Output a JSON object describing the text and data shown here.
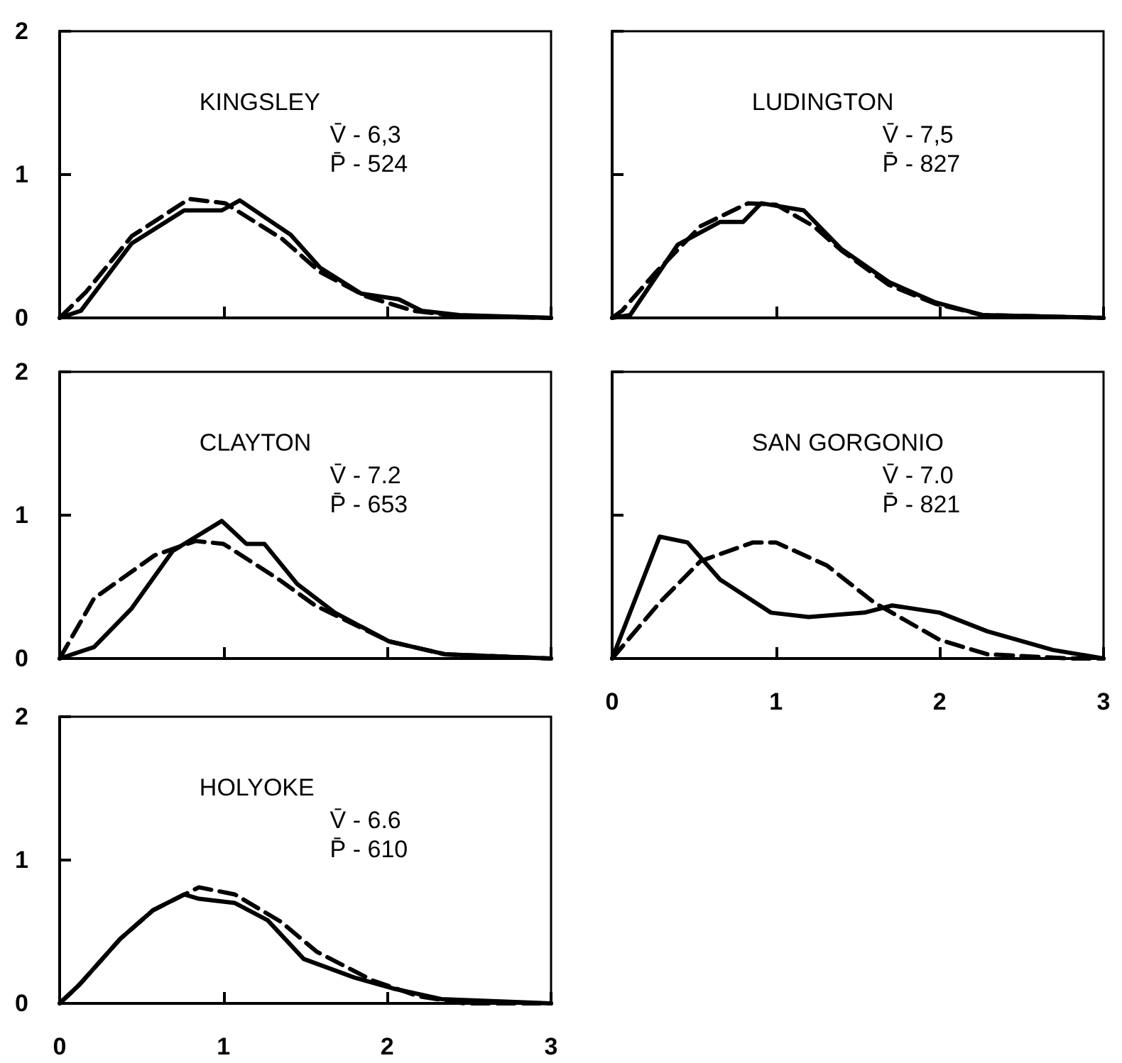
{
  "chart_data": [
    {
      "type": "line",
      "title": "KINGSLEY",
      "annotations": [
        "V̄ - 6,3",
        "P̄ - 524"
      ],
      "xlim": [
        0,
        3
      ],
      "ylim": [
        0,
        2
      ],
      "xticks": [
        0,
        1,
        2,
        3
      ],
      "yticks": [
        0,
        1,
        2
      ],
      "tick_labels": "y",
      "series": [
        {
          "color": "#000000",
          "line_style": "solid",
          "x": [
            0,
            0.13,
            0.44,
            0.76,
            0.99,
            1.1,
            1.41,
            1.59,
            1.84,
            2.07,
            2.21,
            2.44,
            3
          ],
          "values": [
            0,
            0.05,
            0.52,
            0.75,
            0.75,
            0.82,
            0.58,
            0.35,
            0.17,
            0.13,
            0.05,
            0.02,
            0
          ]
        },
        {
          "color": "#000000",
          "line_style": "dashed",
          "x": [
            0,
            0.16,
            0.44,
            0.79,
            1.01,
            1.36,
            1.59,
            1.87,
            2.16,
            2.44,
            3
          ],
          "values": [
            0,
            0.18,
            0.57,
            0.83,
            0.8,
            0.55,
            0.32,
            0.15,
            0.05,
            0.01,
            0
          ]
        }
      ]
    },
    {
      "type": "line",
      "title": "LUDINGTON",
      "annotations": [
        "V̄ - 7,5",
        "P̄ - 827"
      ],
      "xlim": [
        0,
        3
      ],
      "ylim": [
        0,
        2
      ],
      "xticks": [
        0,
        1,
        2,
        3
      ],
      "yticks": [
        0,
        1,
        2
      ],
      "tick_labels": false,
      "series": [
        {
          "color": "#000000",
          "line_style": "solid",
          "x": [
            0,
            0.11,
            0.4,
            0.66,
            0.8,
            0.91,
            1.17,
            1.4,
            1.69,
            1.97,
            2.26,
            3
          ],
          "values": [
            0,
            0.02,
            0.51,
            0.67,
            0.67,
            0.8,
            0.75,
            0.48,
            0.25,
            0.11,
            0.02,
            0
          ]
        },
        {
          "color": "#000000",
          "line_style": "dashed",
          "x": [
            0,
            0.06,
            0.26,
            0.54,
            0.83,
            1.0,
            1.23,
            1.4,
            1.69,
            1.97,
            2.26,
            3
          ],
          "values": [
            0,
            0.05,
            0.31,
            0.64,
            0.8,
            0.79,
            0.64,
            0.47,
            0.23,
            0.1,
            0.02,
            0
          ]
        }
      ]
    },
    {
      "type": "line",
      "title": "CLAYTON",
      "annotations": [
        "V̄ - 7.2",
        "P̄ - 653"
      ],
      "xlim": [
        0,
        3
      ],
      "ylim": [
        0,
        2
      ],
      "xticks": [
        0,
        1,
        2,
        3
      ],
      "yticks": [
        0,
        1,
        2
      ],
      "tick_labels": "y",
      "series": [
        {
          "color": "#000000",
          "line_style": "solid",
          "x": [
            0,
            0.21,
            0.44,
            0.69,
            0.99,
            1.14,
            1.25,
            1.45,
            1.68,
            2.01,
            2.35,
            3
          ],
          "values": [
            0,
            0.08,
            0.35,
            0.75,
            0.96,
            0.8,
            0.8,
            0.52,
            0.32,
            0.12,
            0.03,
            0
          ]
        },
        {
          "color": "#000000",
          "line_style": "dashed",
          "x": [
            0,
            0.21,
            0.58,
            0.83,
            1.0,
            1.34,
            1.56,
            2.01,
            2.35,
            3
          ],
          "values": [
            0,
            0.42,
            0.72,
            0.82,
            0.8,
            0.55,
            0.37,
            0.12,
            0.03,
            0
          ]
        }
      ]
    },
    {
      "type": "line",
      "title": "SAN GORGONIO",
      "annotations": [
        "V̄ - 7.0",
        "P̄ - 821"
      ],
      "xlim": [
        0,
        3
      ],
      "ylim": [
        0,
        2
      ],
      "xticks": [
        0,
        1,
        2,
        3
      ],
      "yticks": [
        0,
        1,
        2
      ],
      "tick_labels": "x",
      "series": [
        {
          "color": "#000000",
          "line_style": "solid",
          "x": [
            0,
            0.29,
            0.46,
            0.66,
            0.97,
            1.2,
            1.54,
            1.71,
            2.0,
            2.29,
            2.69,
            3
          ],
          "values": [
            0,
            0.85,
            0.81,
            0.55,
            0.32,
            0.29,
            0.32,
            0.37,
            0.32,
            0.19,
            0.06,
            0
          ]
        },
        {
          "color": "#000000",
          "line_style": "dashed",
          "x": [
            0,
            0.29,
            0.54,
            0.86,
            1.0,
            1.31,
            1.6,
            2.0,
            2.29,
            2.8,
            3
          ],
          "values": [
            0,
            0.39,
            0.68,
            0.81,
            0.81,
            0.65,
            0.39,
            0.13,
            0.03,
            0,
            0
          ]
        }
      ]
    },
    {
      "type": "line",
      "title": "HOLYOKE",
      "annotations": [
        "V̄ - 6.6",
        "P̄ - 610"
      ],
      "xlim": [
        0,
        3
      ],
      "ylim": [
        0,
        2
      ],
      "xticks": [
        0,
        1,
        2,
        3
      ],
      "yticks": [
        0,
        1,
        2
      ],
      "series": [
        {
          "color": "#000000",
          "line_style": "solid",
          "x": [
            0,
            0.12,
            0.37,
            0.57,
            0.76,
            0.85,
            1.07,
            1.27,
            1.49,
            1.8,
            2.05,
            2.33,
            3
          ],
          "values": [
            0,
            0.13,
            0.45,
            0.65,
            0.76,
            0.73,
            0.7,
            0.58,
            0.31,
            0.18,
            0.1,
            0.03,
            0
          ]
        },
        {
          "color": "#000000",
          "line_style": "dashed",
          "x": [
            0,
            0.12,
            0.37,
            0.57,
            0.85,
            1.07,
            1.35,
            1.57,
            1.91,
            2.19,
            2.47,
            3
          ],
          "values": [
            0,
            0.13,
            0.45,
            0.65,
            0.81,
            0.76,
            0.57,
            0.36,
            0.16,
            0.05,
            0,
            0
          ]
        }
      ]
    }
  ]
}
